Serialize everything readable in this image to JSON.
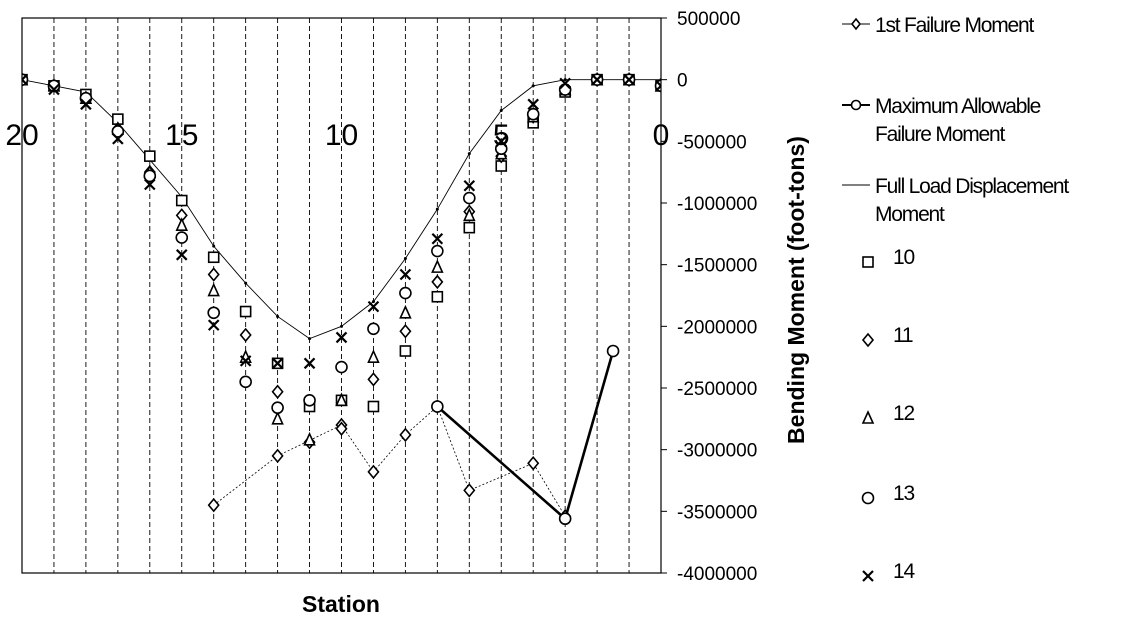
{
  "chart_data": {
    "type": "scatter",
    "xlabel": "Station",
    "ylabel": "Bending Moment (foot-tons)",
    "xlim": [
      20,
      0
    ],
    "ylim": [
      -4000000,
      500000
    ],
    "x_ticks": [
      20,
      15,
      10,
      5,
      0
    ],
    "y_ticks": [
      500000,
      0,
      -500000,
      -1000000,
      -1500000,
      -2000000,
      -2500000,
      -3000000,
      -3500000,
      -4000000
    ],
    "grid": "vertical dashed lines at each station",
    "legend_position": "right",
    "series": [
      {
        "name": "1st Failure Moment",
        "marker": "diamond",
        "line": "thin dashed",
        "x": [
          14,
          12,
          10,
          9,
          8,
          7,
          6,
          4,
          3
        ],
        "y": [
          -3450000,
          -3050000,
          -2800000,
          -3180000,
          -2880000,
          -2650000,
          -3330000,
          -3110000,
          -3540000
        ]
      },
      {
        "name": "Maximum Allowable Failure Moment",
        "marker": "circle",
        "line": "thick solid",
        "x": [
          7,
          3,
          1.5
        ],
        "y": [
          -2650000,
          -3560000,
          -2200000
        ]
      },
      {
        "name": "Full Load Displacement Moment",
        "marker": "dot",
        "line": "thin solid",
        "x": [
          20,
          19,
          18,
          17,
          16,
          15,
          14,
          13,
          12,
          11,
          10,
          9,
          8,
          7,
          6,
          5,
          4,
          3,
          2,
          1,
          0
        ],
        "y": [
          0,
          -50000,
          -100000,
          -350000,
          -650000,
          -950000,
          -1350000,
          -1650000,
          -1920000,
          -2100000,
          -2000000,
          -1800000,
          -1450000,
          -1050000,
          -600000,
          -250000,
          -50000,
          0,
          0,
          0,
          0
        ]
      },
      {
        "name": "10",
        "marker": "square",
        "x": [
          20,
          19,
          18,
          17,
          16,
          15,
          14,
          13,
          12,
          11,
          10,
          9,
          8,
          7,
          6,
          5,
          4,
          3,
          2,
          1,
          0
        ],
        "y": [
          0,
          -50000,
          -120000,
          -320000,
          -620000,
          -980000,
          -1440000,
          -1880000,
          -2300000,
          -2650000,
          -2600000,
          -2650000,
          -2200000,
          -1760000,
          -1200000,
          -700000,
          -350000,
          -100000,
          0,
          0,
          -50000
        ]
      },
      {
        "name": "11",
        "marker": "diamond",
        "x": [
          20,
          19,
          18,
          17,
          16,
          15,
          14,
          13,
          12,
          11,
          10,
          9,
          8,
          7,
          6,
          5,
          4,
          3,
          2,
          1,
          0
        ],
        "y": [
          0,
          -50000,
          -150000,
          -400000,
          -750000,
          -1100000,
          -1580000,
          -2070000,
          -2530000,
          -2940000,
          -2830000,
          -2430000,
          -2040000,
          -1640000,
          -1070000,
          -620000,
          -300000,
          -80000,
          0,
          0,
          -50000
        ]
      },
      {
        "name": "12",
        "marker": "triangle",
        "x": [
          20,
          19,
          18,
          17,
          16,
          15,
          14,
          13,
          12,
          11,
          10,
          9,
          8,
          7,
          6,
          5,
          4,
          3,
          2,
          1,
          0
        ],
        "y": [
          0,
          -50000,
          -150000,
          -400000,
          -750000,
          -1180000,
          -1710000,
          -2250000,
          -2750000,
          -2920000,
          -2600000,
          -2250000,
          -1890000,
          -1520000,
          -1100000,
          -600000,
          -300000,
          -80000,
          0,
          0,
          -50000
        ]
      },
      {
        "name": "13",
        "marker": "circle",
        "x": [
          20,
          19,
          18,
          17,
          16,
          15,
          14,
          13,
          12,
          11,
          10,
          9,
          8,
          7,
          6,
          5,
          4,
          3,
          2,
          1,
          0
        ],
        "y": [
          0,
          -50000,
          -150000,
          -420000,
          -780000,
          -1280000,
          -1890000,
          -2450000,
          -2660000,
          -2600000,
          -2330000,
          -2020000,
          -1730000,
          -1390000,
          -960000,
          -560000,
          -280000,
          -80000,
          0,
          0,
          -50000
        ]
      },
      {
        "name": "14",
        "marker": "x",
        "x": [
          20,
          19,
          18,
          17,
          16,
          15,
          14,
          13,
          12,
          11,
          10,
          9,
          8,
          7,
          6,
          5,
          4,
          3,
          2,
          1,
          0
        ],
        "y": [
          0,
          -80000,
          -200000,
          -480000,
          -850000,
          -1420000,
          -1990000,
          -2280000,
          -2300000,
          -2300000,
          -2090000,
          -1840000,
          -1580000,
          -1290000,
          -860000,
          -500000,
          -200000,
          -30000,
          0,
          0,
          -50000
        ]
      }
    ]
  }
}
